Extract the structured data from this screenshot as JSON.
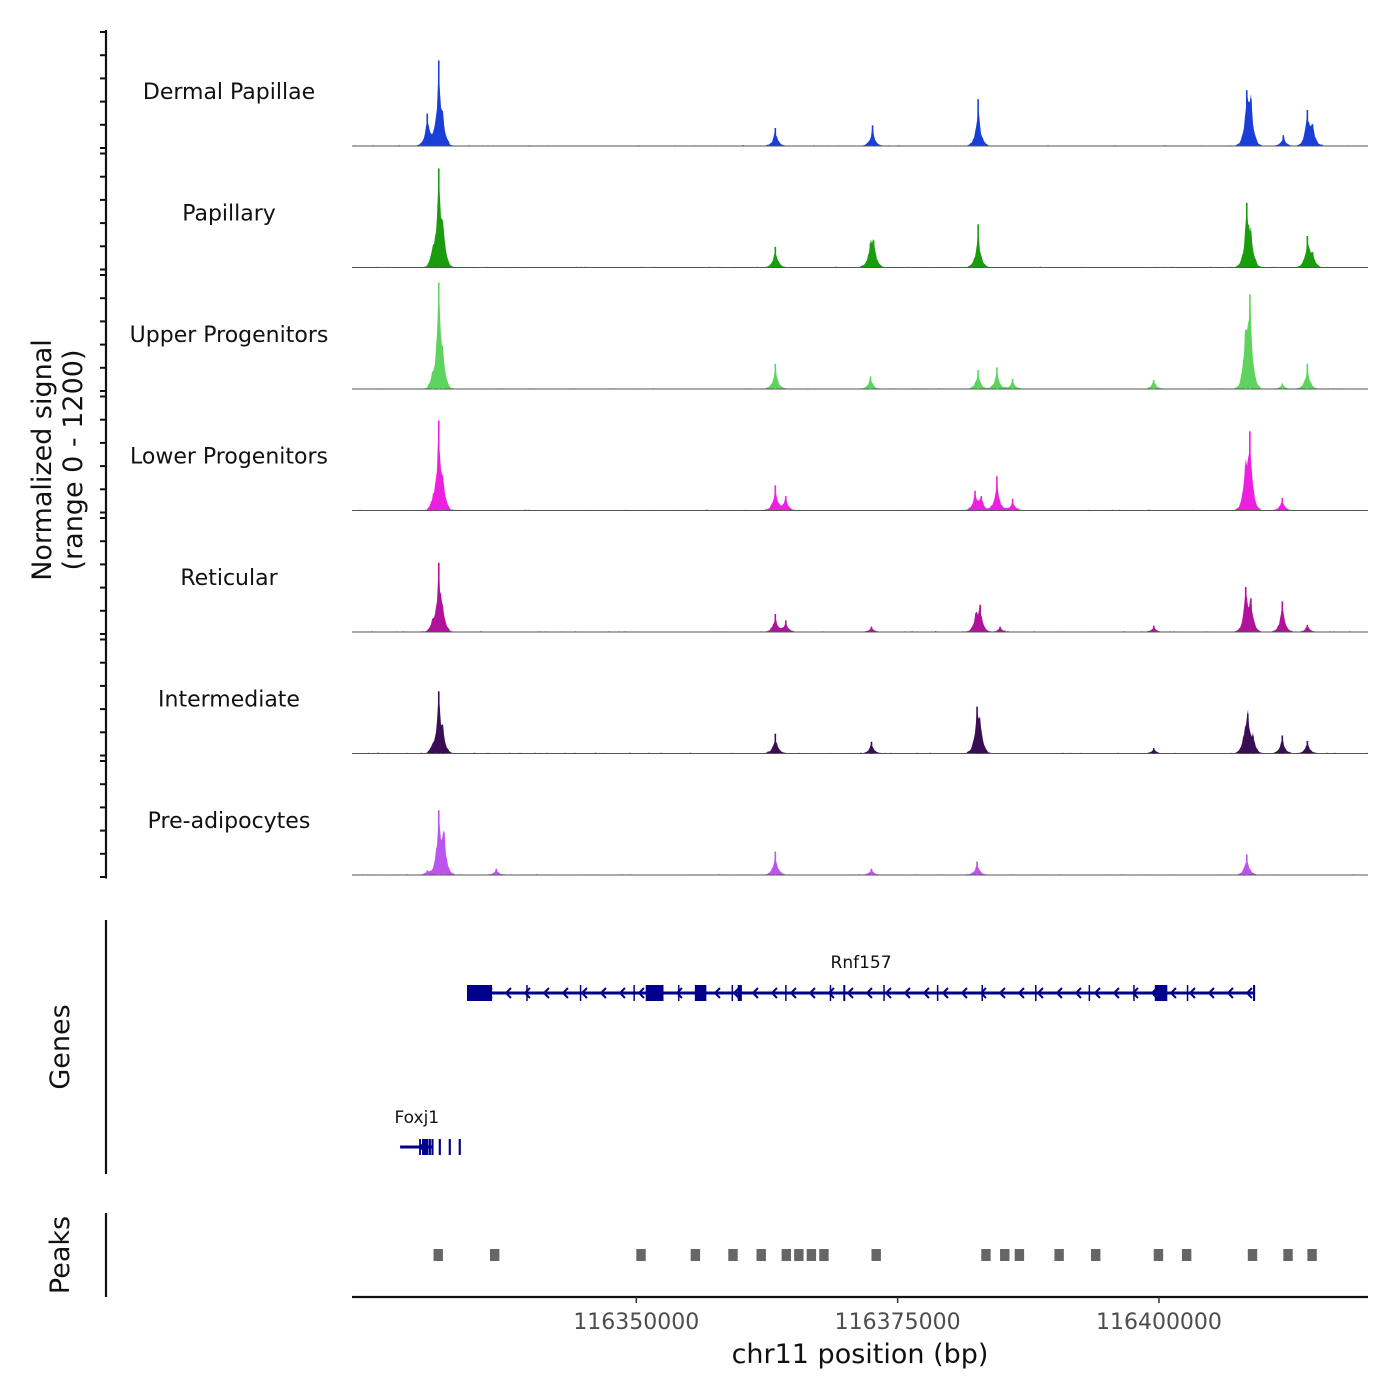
{
  "chart_data": {
    "type": "area",
    "title": "",
    "ylabel": "Normalized signal",
    "ylabel_range": "(range 0 - 1200)",
    "y_range": [
      0,
      1200
    ],
    "xlabel": "chr11 position (bp)",
    "chromosome": "chr11",
    "region": [
      116322800,
      116420000
    ],
    "x_ticks": [
      116350000,
      116375000,
      116400000
    ],
    "x_tick_labels": [
      "116350000",
      "116375000",
      "116400000"
    ],
    "genes_label": "Genes",
    "peaks_label": "Peaks",
    "tracks": [
      {
        "name": "Dermal Papillae",
        "color": "#1a3fd6",
        "peaks": [
          [
            116330000,
            360
          ],
          [
            116331100,
            950
          ],
          [
            116331500,
            240
          ],
          [
            116363300,
            200
          ],
          [
            116372600,
            230
          ],
          [
            116382700,
            520
          ],
          [
            116408400,
            620
          ],
          [
            116408800,
            520
          ],
          [
            116411900,
            120
          ],
          [
            116414200,
            400
          ],
          [
            116414700,
            240
          ]
        ]
      },
      {
        "name": "Papillary",
        "color": "#1a9c0e",
        "peaks": [
          [
            116330500,
            160
          ],
          [
            116331100,
            1100
          ],
          [
            116331500,
            430
          ],
          [
            116363300,
            230
          ],
          [
            116372400,
            270
          ],
          [
            116372700,
            300
          ],
          [
            116382700,
            480
          ],
          [
            116408400,
            720
          ],
          [
            116408800,
            360
          ],
          [
            116414200,
            350
          ],
          [
            116414700,
            170
          ]
        ]
      },
      {
        "name": "Upper Progenitors",
        "color": "#5ed45e",
        "peaks": [
          [
            116330500,
            120
          ],
          [
            116331100,
            1180
          ],
          [
            116331500,
            280
          ],
          [
            116363300,
            280
          ],
          [
            116372400,
            140
          ],
          [
            116382700,
            210
          ],
          [
            116384500,
            240
          ],
          [
            116386000,
            110
          ],
          [
            116399500,
            100
          ],
          [
            116408300,
            640
          ],
          [
            116408700,
            1050
          ],
          [
            116411800,
            60
          ],
          [
            116414200,
            280
          ]
        ]
      },
      {
        "name": "Lower Progenitors",
        "color": "#ee20e0",
        "peaks": [
          [
            116330500,
            80
          ],
          [
            116331100,
            1000
          ],
          [
            116331500,
            230
          ],
          [
            116363300,
            280
          ],
          [
            116364300,
            160
          ],
          [
            116382400,
            220
          ],
          [
            116383000,
            160
          ],
          [
            116384500,
            380
          ],
          [
            116386000,
            130
          ],
          [
            116408300,
            500
          ],
          [
            116408700,
            880
          ],
          [
            116411800,
            140
          ]
        ]
      },
      {
        "name": "Reticular",
        "color": "#b0129b",
        "peaks": [
          [
            116330500,
            100
          ],
          [
            116331100,
            770
          ],
          [
            116331500,
            190
          ],
          [
            116363300,
            200
          ],
          [
            116364300,
            130
          ],
          [
            116372500,
            60
          ],
          [
            116382500,
            210
          ],
          [
            116382900,
            300
          ],
          [
            116384800,
            60
          ],
          [
            116399500,
            70
          ],
          [
            116408300,
            500
          ],
          [
            116408800,
            370
          ],
          [
            116411800,
            340
          ],
          [
            116414200,
            80
          ]
        ]
      },
      {
        "name": "Intermediate",
        "color": "#3a0e55",
        "peaks": [
          [
            116330500,
            70
          ],
          [
            116331100,
            690
          ],
          [
            116331500,
            200
          ],
          [
            116363300,
            220
          ],
          [
            116372500,
            130
          ],
          [
            116382600,
            520
          ],
          [
            116382900,
            300
          ],
          [
            116399500,
            60
          ],
          [
            116408200,
            200
          ],
          [
            116408500,
            440
          ],
          [
            116409000,
            190
          ],
          [
            116411800,
            200
          ],
          [
            116414200,
            140
          ]
        ]
      },
      {
        "name": "Pre-adipocytes",
        "color": "#bb55ee",
        "peaks": [
          [
            116330000,
            50
          ],
          [
            116331100,
            720
          ],
          [
            116331600,
            470
          ],
          [
            116336600,
            70
          ],
          [
            116363300,
            260
          ],
          [
            116372500,
            70
          ],
          [
            116382600,
            150
          ],
          [
            116408400,
            230
          ]
        ]
      }
    ],
    "genes": [
      {
        "name": "Rnf157",
        "start": 116333800,
        "end": 116409200,
        "strand": "-",
        "exons": [
          [
            116333800,
            116336200
          ],
          [
            116350900,
            116352600
          ],
          [
            116355600,
            116356700
          ],
          [
            116359700,
            116360100
          ],
          [
            116369800,
            116369900
          ],
          [
            116399600,
            116400800
          ],
          [
            116409000,
            116409200
          ]
        ]
      },
      {
        "name": "Foxj1",
        "start": 116327400,
        "end": 116330600,
        "strand": "-",
        "exons": [
          [
            116329500,
            116330100
          ],
          [
            116330400,
            116330600
          ]
        ]
      }
    ],
    "peak_regions": [
      [
        116330600,
        116331500
      ],
      [
        116336000,
        116336900
      ],
      [
        116350000,
        116350900
      ],
      [
        116355200,
        116356100
      ],
      [
        116358800,
        116359700
      ],
      [
        116361500,
        116362400
      ],
      [
        116363900,
        116364800
      ],
      [
        116365100,
        116366000
      ],
      [
        116366300,
        116367200
      ],
      [
        116367500,
        116368400
      ],
      [
        116372500,
        116373400
      ],
      [
        116383000,
        116383900
      ],
      [
        116384800,
        116385700
      ],
      [
        116386200,
        116387100
      ],
      [
        116390000,
        116390900
      ],
      [
        116393500,
        116394400
      ],
      [
        116399500,
        116400400
      ],
      [
        116402200,
        116403100
      ],
      [
        116408500,
        116409400
      ],
      [
        116411900,
        116412800
      ],
      [
        116414200,
        116415100
      ]
    ]
  }
}
